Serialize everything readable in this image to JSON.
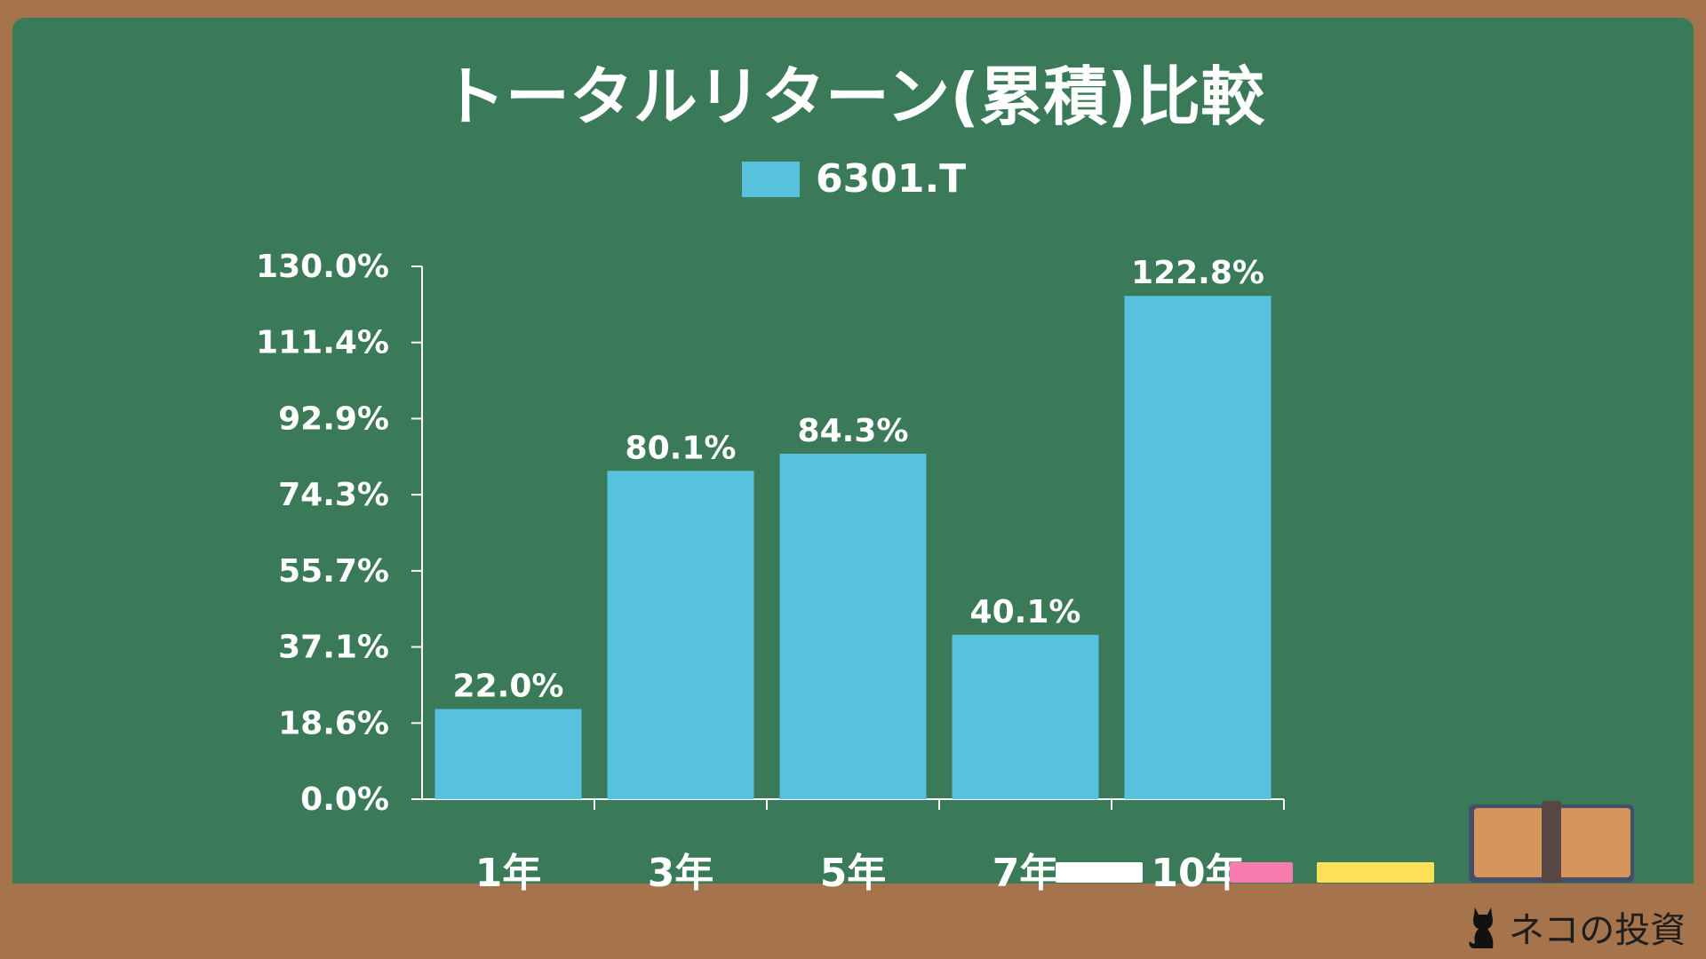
{
  "chart_data": {
    "type": "bar",
    "title": "トータルリターン(累積)比較",
    "categories": [
      "1年",
      "3年",
      "5年",
      "7年",
      "10年"
    ],
    "series": [
      {
        "name": "6301.T",
        "values": [
          22.0,
          80.1,
          84.3,
          40.1,
          122.8
        ],
        "color": "#56c2de"
      }
    ],
    "data_labels": [
      "22.0%",
      "80.1%",
      "84.3%",
      "40.1%",
      "122.8%"
    ],
    "yticks": [
      "0.0%",
      "18.6%",
      "37.1%",
      "55.7%",
      "74.3%",
      "92.9%",
      "111.4%",
      "130.0%"
    ],
    "ylim": [
      0,
      130
    ],
    "grid": false,
    "legend": "top-center"
  },
  "colors": {
    "board": "#3a7a59",
    "frame": "#a5744c",
    "bar": "#56c2de"
  },
  "logo": {
    "text": "ネコの投資",
    "icon": "cat-icon"
  }
}
